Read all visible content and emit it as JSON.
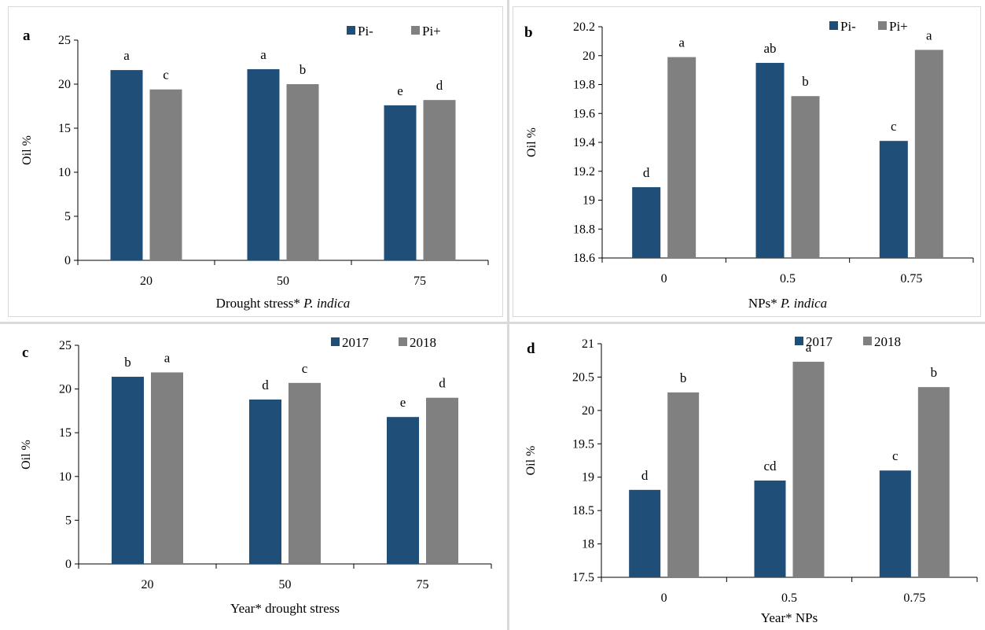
{
  "colors": {
    "series1": "#1f4e79",
    "series2": "#808080",
    "divider": "#d9d9d9"
  },
  "chart_data": [
    {
      "panel_label": "a",
      "type": "bar",
      "xlabel_parts": [
        {
          "text": "Drought stress* ",
          "italic": false
        },
        {
          "text": "P. indica",
          "italic": true
        }
      ],
      "ylabel": "Oil %",
      "ylim": [
        0,
        25
      ],
      "yticks": [
        0,
        5,
        10,
        15,
        20,
        25
      ],
      "categories": [
        "20",
        "50",
        "75"
      ],
      "legend_position": "top-right",
      "series": [
        {
          "name": "Pi-",
          "values": [
            21.6,
            21.7,
            17.6
          ],
          "labels": [
            "a",
            "a",
            "e"
          ]
        },
        {
          "name": "Pi+",
          "values": [
            19.4,
            20.0,
            18.2
          ],
          "labels": [
            "c",
            "b",
            "d"
          ]
        }
      ]
    },
    {
      "panel_label": "b",
      "type": "bar",
      "xlabel_parts": [
        {
          "text": "NPs* ",
          "italic": false
        },
        {
          "text": "P. indica",
          "italic": true
        }
      ],
      "ylabel": "Oil %",
      "ylim": [
        18.6,
        20.2
      ],
      "yticks": [
        18.6,
        18.8,
        19,
        19.2,
        19.4,
        19.6,
        19.8,
        20,
        20.2
      ],
      "categories": [
        "0",
        "0.5",
        "0.75"
      ],
      "legend_position": "top-right",
      "series": [
        {
          "name": "Pi-",
          "values": [
            19.09,
            19.95,
            19.41
          ],
          "labels": [
            "d",
            "ab",
            "c"
          ]
        },
        {
          "name": "Pi+",
          "values": [
            19.99,
            19.72,
            20.04
          ],
          "labels": [
            "a",
            "b",
            "a"
          ]
        }
      ]
    },
    {
      "panel_label": "c",
      "type": "bar",
      "xlabel_parts": [
        {
          "text": "Year* drought stress",
          "italic": false
        }
      ],
      "ylabel": "Oil %",
      "ylim": [
        0,
        25
      ],
      "yticks": [
        0,
        5,
        10,
        15,
        20,
        25
      ],
      "categories": [
        "20",
        "50",
        "75"
      ],
      "legend_position": "top-right",
      "series": [
        {
          "name": "2017",
          "values": [
            21.4,
            18.8,
            16.8
          ],
          "labels": [
            "b",
            "d",
            "e"
          ]
        },
        {
          "name": "2018",
          "values": [
            21.9,
            20.7,
            19.0
          ],
          "labels": [
            "a",
            "c",
            "d"
          ]
        }
      ]
    },
    {
      "panel_label": "d",
      "type": "bar",
      "xlabel_parts": [
        {
          "text": "Year* NPs",
          "italic": false
        }
      ],
      "ylabel": "Oil %",
      "ylim": [
        17.5,
        21
      ],
      "yticks": [
        17.5,
        18,
        18.5,
        19,
        19.5,
        20,
        20.5,
        21
      ],
      "categories": [
        "0",
        "0.5",
        "0.75"
      ],
      "legend_position": "top-right",
      "series": [
        {
          "name": "2017",
          "values": [
            18.81,
            18.95,
            19.1
          ],
          "labels": [
            "d",
            "cd",
            "c"
          ]
        },
        {
          "name": "2018",
          "values": [
            20.27,
            20.73,
            20.35
          ],
          "labels": [
            "b",
            "a",
            "b"
          ]
        }
      ]
    }
  ]
}
